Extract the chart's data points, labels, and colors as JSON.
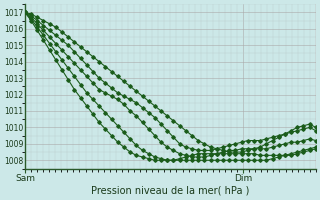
{
  "title": "Pression niveau de la mer( hPa )",
  "xlabel_sam": "Sam",
  "xlabel_dim": "Dim",
  "bg_color": "#cce8e8",
  "grid_color_major": "#aaaaaa",
  "grid_color_minor": "#bbcccc",
  "line_color": "#1a5c1a",
  "ylim": [
    1007.5,
    1017.5
  ],
  "yticks": [
    1008,
    1009,
    1010,
    1011,
    1012,
    1013,
    1014,
    1015,
    1016,
    1017
  ],
  "xlim": [
    0,
    48
  ],
  "sam_x": 0,
  "dim_x": 36,
  "n_points": 48,
  "series": [
    [
      1017.0,
      1016.9,
      1016.7,
      1016.5,
      1016.3,
      1016.1,
      1015.8,
      1015.5,
      1015.2,
      1014.9,
      1014.6,
      1014.3,
      1014.0,
      1013.7,
      1013.4,
      1013.1,
      1012.8,
      1012.5,
      1012.2,
      1011.9,
      1011.6,
      1011.3,
      1011.0,
      1010.7,
      1010.4,
      1010.1,
      1009.8,
      1009.5,
      1009.2,
      1009.0,
      1008.8,
      1008.7,
      1008.6,
      1008.5,
      1008.5,
      1008.5,
      1008.6,
      1008.7,
      1008.8,
      1009.0,
      1009.2,
      1009.4,
      1009.6,
      1009.8,
      1010.0,
      1010.1,
      1010.2,
      1010.0
    ],
    [
      1017.0,
      1016.8,
      1016.5,
      1016.2,
      1015.9,
      1015.6,
      1015.3,
      1015.0,
      1014.6,
      1014.2,
      1013.8,
      1013.4,
      1013.0,
      1012.7,
      1012.4,
      1012.1,
      1011.9,
      1011.7,
      1011.5,
      1011.2,
      1010.9,
      1010.6,
      1010.2,
      1009.8,
      1009.4,
      1009.0,
      1008.8,
      1008.7,
      1008.6,
      1008.6,
      1008.6,
      1008.7,
      1008.8,
      1008.9,
      1009.0,
      1009.1,
      1009.2,
      1009.2,
      1009.2,
      1009.3,
      1009.4,
      1009.5,
      1009.6,
      1009.7,
      1009.8,
      1009.9,
      1010.0,
      1009.8
    ],
    [
      1017.0,
      1016.7,
      1016.3,
      1015.9,
      1015.5,
      1015.1,
      1014.7,
      1014.3,
      1013.9,
      1013.5,
      1013.1,
      1012.7,
      1012.3,
      1012.1,
      1011.9,
      1011.7,
      1011.4,
      1011.0,
      1010.7,
      1010.3,
      1009.9,
      1009.5,
      1009.1,
      1008.8,
      1008.6,
      1008.4,
      1008.3,
      1008.2,
      1008.2,
      1008.2,
      1008.3,
      1008.4,
      1008.5,
      1008.6,
      1008.6,
      1008.7,
      1008.7,
      1008.7,
      1008.7,
      1008.7,
      1008.8,
      1008.9,
      1009.0,
      1009.1,
      1009.1,
      1009.2,
      1009.3,
      1009.2
    ],
    [
      1017.0,
      1016.6,
      1016.1,
      1015.6,
      1015.1,
      1014.6,
      1014.1,
      1013.6,
      1013.1,
      1012.6,
      1012.1,
      1011.7,
      1011.3,
      1010.9,
      1010.5,
      1010.1,
      1009.7,
      1009.3,
      1008.9,
      1008.6,
      1008.4,
      1008.2,
      1008.1,
      1008.0,
      1008.0,
      1008.0,
      1008.0,
      1008.0,
      1008.0,
      1008.0,
      1008.0,
      1008.0,
      1008.0,
      1008.0,
      1008.0,
      1008.0,
      1008.0,
      1008.0,
      1008.0,
      1008.0,
      1008.1,
      1008.2,
      1008.3,
      1008.4,
      1008.5,
      1008.6,
      1008.7,
      1008.8
    ],
    [
      1017.0,
      1016.5,
      1015.9,
      1015.3,
      1014.7,
      1014.1,
      1013.5,
      1012.9,
      1012.3,
      1011.8,
      1011.3,
      1010.8,
      1010.3,
      1009.9,
      1009.5,
      1009.1,
      1008.8,
      1008.5,
      1008.3,
      1008.2,
      1008.1,
      1008.0,
      1008.0,
      1008.0,
      1008.0,
      1008.1,
      1008.2,
      1008.3,
      1008.4,
      1008.4,
      1008.4,
      1008.4,
      1008.4,
      1008.4,
      1008.4,
      1008.4,
      1008.4,
      1008.4,
      1008.3,
      1008.3,
      1008.3,
      1008.3,
      1008.3,
      1008.3,
      1008.4,
      1008.5,
      1008.6,
      1008.7
    ]
  ]
}
